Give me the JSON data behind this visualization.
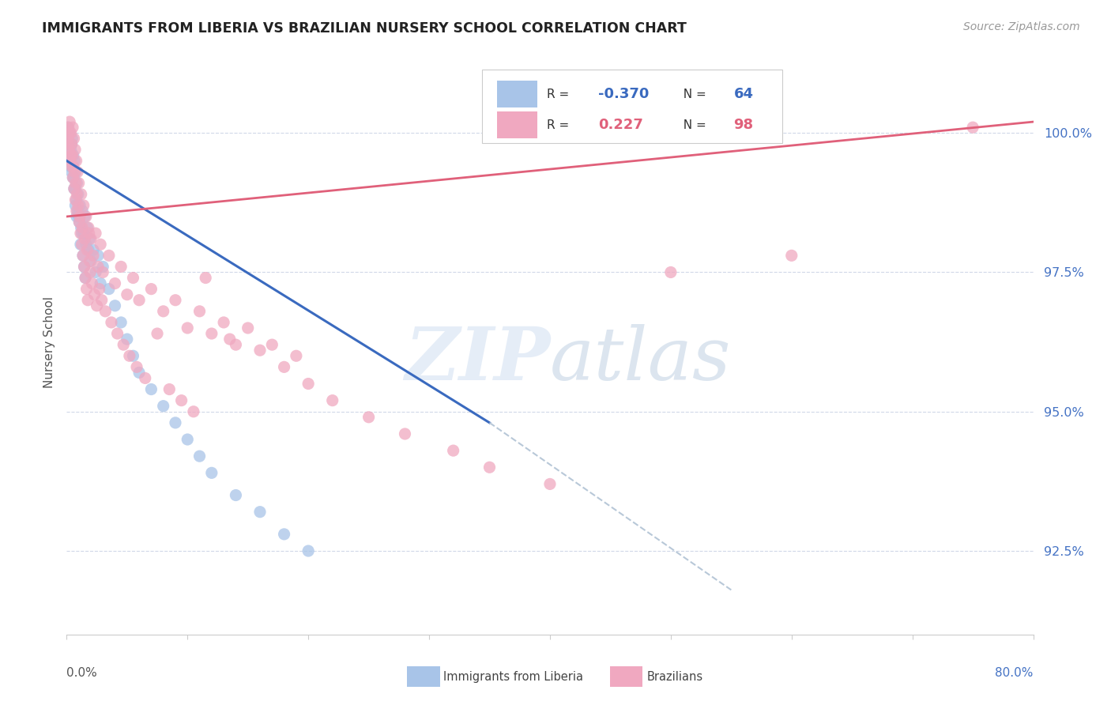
{
  "title": "IMMIGRANTS FROM LIBERIA VS BRAZILIAN NURSERY SCHOOL CORRELATION CHART",
  "source": "Source: ZipAtlas.com",
  "ylabel": "Nursery School",
  "yticks": [
    92.5,
    95.0,
    97.5,
    100.0
  ],
  "xmin": 0.0,
  "xmax": 80.0,
  "ymin": 91.0,
  "ymax": 101.5,
  "legend_r_liberia": "-0.370",
  "legend_n_liberia": "64",
  "legend_r_brazilians": "0.227",
  "legend_n_brazilians": "98",
  "color_liberia": "#a8c4e8",
  "color_brazilians": "#f0a8c0",
  "color_liberia_line": "#3a6abf",
  "color_brazilians_line": "#e0607a",
  "color_dashed": "#b8c8d8",
  "color_grid": "#d0d8e8",
  "color_ytick_labels": "#4472c4",
  "lib_line_x0": 0.0,
  "lib_line_y0": 99.5,
  "lib_line_x1": 35.0,
  "lib_line_y1": 94.8,
  "lib_dash_x0": 35.0,
  "lib_dash_y0": 94.8,
  "lib_dash_x1": 55.0,
  "lib_dash_y1": 91.8,
  "braz_line_x0": 0.0,
  "braz_line_y0": 98.5,
  "braz_line_x1": 80.0,
  "braz_line_y1": 100.2,
  "liberia_points": [
    [
      0.1,
      100.1
    ],
    [
      0.15,
      99.8
    ],
    [
      0.2,
      99.6
    ],
    [
      0.25,
      100.0
    ],
    [
      0.3,
      99.5
    ],
    [
      0.35,
      99.7
    ],
    [
      0.4,
      99.3
    ],
    [
      0.45,
      99.9
    ],
    [
      0.5,
      99.4
    ],
    [
      0.55,
      99.6
    ],
    [
      0.6,
      99.2
    ],
    [
      0.65,
      99.5
    ],
    [
      0.7,
      99.0
    ],
    [
      0.75,
      99.3
    ],
    [
      0.8,
      98.8
    ],
    [
      0.85,
      99.1
    ],
    [
      0.9,
      98.6
    ],
    [
      0.95,
      98.9
    ],
    [
      1.0,
      98.5
    ],
    [
      1.1,
      98.7
    ],
    [
      1.2,
      98.3
    ],
    [
      1.3,
      98.6
    ],
    [
      1.4,
      98.2
    ],
    [
      1.5,
      98.5
    ],
    [
      1.6,
      98.0
    ],
    [
      1.7,
      98.3
    ],
    [
      1.8,
      97.9
    ],
    [
      1.9,
      98.1
    ],
    [
      2.0,
      97.7
    ],
    [
      2.2,
      97.9
    ],
    [
      2.4,
      97.5
    ],
    [
      2.6,
      97.8
    ],
    [
      2.8,
      97.3
    ],
    [
      3.0,
      97.6
    ],
    [
      3.5,
      97.2
    ],
    [
      4.0,
      96.9
    ],
    [
      4.5,
      96.6
    ],
    [
      5.0,
      96.3
    ],
    [
      5.5,
      96.0
    ],
    [
      6.0,
      95.7
    ],
    [
      7.0,
      95.4
    ],
    [
      8.0,
      95.1
    ],
    [
      9.0,
      94.8
    ],
    [
      10.0,
      94.5
    ],
    [
      11.0,
      94.2
    ],
    [
      12.0,
      93.9
    ],
    [
      14.0,
      93.5
    ],
    [
      16.0,
      93.2
    ],
    [
      18.0,
      92.8
    ],
    [
      20.0,
      92.5
    ],
    [
      0.12,
      99.9
    ],
    [
      0.22,
      99.7
    ],
    [
      0.32,
      99.4
    ],
    [
      0.42,
      99.8
    ],
    [
      0.52,
      99.2
    ],
    [
      0.62,
      99.0
    ],
    [
      0.72,
      98.7
    ],
    [
      0.82,
      98.5
    ],
    [
      1.05,
      98.4
    ],
    [
      1.15,
      98.0
    ],
    [
      1.25,
      98.2
    ],
    [
      1.35,
      97.8
    ],
    [
      1.45,
      97.6
    ],
    [
      1.55,
      97.4
    ]
  ],
  "brazilians_points": [
    [
      0.1,
      99.9
    ],
    [
      0.15,
      100.1
    ],
    [
      0.2,
      99.7
    ],
    [
      0.25,
      100.2
    ],
    [
      0.3,
      99.5
    ],
    [
      0.35,
      100.0
    ],
    [
      0.4,
      99.8
    ],
    [
      0.45,
      99.6
    ],
    [
      0.5,
      100.1
    ],
    [
      0.55,
      99.4
    ],
    [
      0.6,
      99.9
    ],
    [
      0.65,
      99.3
    ],
    [
      0.7,
      99.7
    ],
    [
      0.75,
      99.1
    ],
    [
      0.8,
      99.5
    ],
    [
      0.85,
      98.9
    ],
    [
      0.9,
      99.3
    ],
    [
      0.95,
      98.7
    ],
    [
      1.0,
      99.1
    ],
    [
      1.1,
      98.5
    ],
    [
      1.2,
      98.9
    ],
    [
      1.3,
      98.3
    ],
    [
      1.4,
      98.7
    ],
    [
      1.5,
      98.1
    ],
    [
      1.6,
      98.5
    ],
    [
      1.7,
      97.9
    ],
    [
      1.8,
      98.3
    ],
    [
      1.9,
      97.7
    ],
    [
      2.0,
      98.1
    ],
    [
      2.2,
      97.8
    ],
    [
      2.4,
      98.2
    ],
    [
      2.6,
      97.6
    ],
    [
      2.8,
      98.0
    ],
    [
      3.0,
      97.5
    ],
    [
      3.5,
      97.8
    ],
    [
      4.0,
      97.3
    ],
    [
      4.5,
      97.6
    ],
    [
      5.0,
      97.1
    ],
    [
      5.5,
      97.4
    ],
    [
      6.0,
      97.0
    ],
    [
      7.0,
      97.2
    ],
    [
      8.0,
      96.8
    ],
    [
      9.0,
      97.0
    ],
    [
      10.0,
      96.5
    ],
    [
      11.0,
      96.8
    ],
    [
      12.0,
      96.4
    ],
    [
      13.0,
      96.6
    ],
    [
      14.0,
      96.2
    ],
    [
      15.0,
      96.5
    ],
    [
      16.0,
      96.1
    ],
    [
      18.0,
      95.8
    ],
    [
      20.0,
      95.5
    ],
    [
      22.0,
      95.2
    ],
    [
      25.0,
      94.9
    ],
    [
      28.0,
      94.6
    ],
    [
      32.0,
      94.3
    ],
    [
      35.0,
      94.0
    ],
    [
      40.0,
      93.7
    ],
    [
      50.0,
      97.5
    ],
    [
      60.0,
      97.8
    ],
    [
      75.0,
      100.1
    ],
    [
      0.12,
      99.8
    ],
    [
      0.22,
      100.0
    ],
    [
      0.32,
      99.6
    ],
    [
      0.42,
      99.4
    ],
    [
      0.52,
      99.2
    ],
    [
      0.62,
      99.0
    ],
    [
      0.72,
      98.8
    ],
    [
      0.82,
      98.6
    ],
    [
      1.05,
      98.4
    ],
    [
      1.15,
      98.2
    ],
    [
      1.25,
      98.0
    ],
    [
      1.35,
      97.8
    ],
    [
      1.45,
      97.6
    ],
    [
      1.55,
      97.4
    ],
    [
      1.65,
      97.2
    ],
    [
      1.75,
      97.0
    ],
    [
      1.85,
      98.2
    ],
    [
      1.95,
      97.5
    ],
    [
      2.1,
      97.3
    ],
    [
      2.3,
      97.1
    ],
    [
      2.5,
      96.9
    ],
    [
      2.7,
      97.2
    ],
    [
      2.9,
      97.0
    ],
    [
      3.2,
      96.8
    ],
    [
      3.7,
      96.6
    ],
    [
      4.2,
      96.4
    ],
    [
      4.7,
      96.2
    ],
    [
      5.2,
      96.0
    ],
    [
      5.8,
      95.8
    ],
    [
      6.5,
      95.6
    ],
    [
      7.5,
      96.4
    ],
    [
      8.5,
      95.4
    ],
    [
      9.5,
      95.2
    ],
    [
      10.5,
      95.0
    ],
    [
      11.5,
      97.4
    ],
    [
      13.5,
      96.3
    ],
    [
      17.0,
      96.2
    ],
    [
      19.0,
      96.0
    ]
  ]
}
